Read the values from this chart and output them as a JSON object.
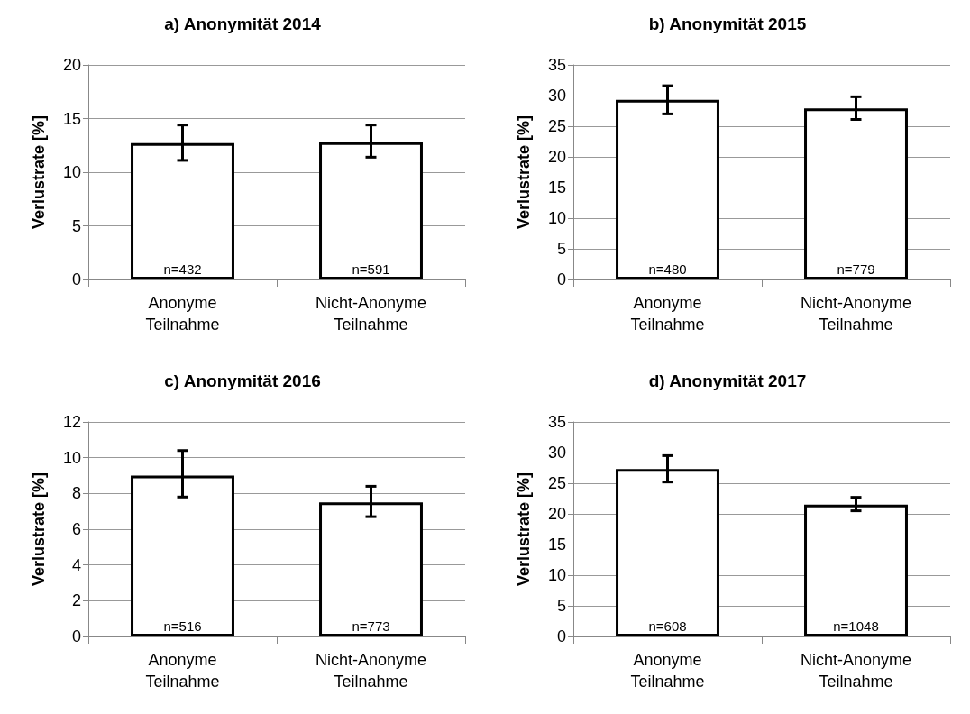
{
  "chart_data": [
    {
      "type": "bar",
      "title": "a) Anonymität 2014",
      "ylabel": "Verlustrate [%]",
      "categories": [
        "Anonyme\nTeilnahme",
        "Nicht-Anonyme\nTeilnahme"
      ],
      "values": [
        12.7,
        12.8
      ],
      "errors": [
        [
          11.1,
          14.4
        ],
        [
          11.4,
          14.4
        ]
      ],
      "color": "#ffffff",
      "ylim": [
        0,
        20
      ],
      "yticks": [
        0,
        5,
        10,
        15,
        20
      ],
      "grid": "y",
      "annotations": [
        {
          "text": "n=432",
          "x": "Anonyme\nTeilnahme",
          "y": 0
        },
        {
          "text": "n=591",
          "x": "Nicht-Anonyme\nTeilnahme",
          "y": 0
        }
      ]
    },
    {
      "type": "bar",
      "title": "b) Anonymität 2015",
      "ylabel": "Verlustrate [%]",
      "categories": [
        "Anonyme\nTeilnahme",
        "Nicht-Anonyme\nTeilnahme"
      ],
      "values": [
        29.3,
        27.9
      ],
      "errors": [
        [
          27.0,
          31.6
        ],
        [
          26.1,
          29.8
        ]
      ],
      "color": "#ffffff",
      "ylim": [
        0,
        35
      ],
      "yticks": [
        0,
        5,
        10,
        15,
        20,
        25,
        30,
        35
      ],
      "grid": "y",
      "annotations": [
        {
          "text": "n=480",
          "x": "Anonyme\nTeilnahme",
          "y": 0
        },
        {
          "text": "n=779",
          "x": "Nicht-Anonyme\nTeilnahme",
          "y": 0
        }
      ]
    },
    {
      "type": "bar",
      "title": "c) Anonymität 2016",
      "ylabel": "Verlustrate [%]",
      "categories": [
        "Anonyme\nTeilnahme",
        "Nicht-Anonyme\nTeilnahme"
      ],
      "values": [
        9.0,
        7.5
      ],
      "errors": [
        [
          7.8,
          10.4
        ],
        [
          6.7,
          8.4
        ]
      ],
      "color": "#ffffff",
      "ylim": [
        0,
        12
      ],
      "yticks": [
        0,
        2,
        4,
        6,
        8,
        10,
        12
      ],
      "grid": "y",
      "annotations": [
        {
          "text": "n=516",
          "x": "Anonyme\nTeilnahme",
          "y": 0
        },
        {
          "text": "n=773",
          "x": "Nicht-Anonyme\nTeilnahme",
          "y": 0
        }
      ]
    },
    {
      "type": "bar",
      "title": "d) Anonymität 2017",
      "ylabel": "Verlustrate [%]",
      "categories": [
        "Anonyme\nTeilnahme",
        "Nicht-Anonyme\nTeilnahme"
      ],
      "values": [
        27.3,
        21.5
      ],
      "errors": [
        [
          25.2,
          29.5
        ],
        [
          20.5,
          22.7
        ]
      ],
      "color": "#ffffff",
      "ylim": [
        0,
        35
      ],
      "yticks": [
        0,
        5,
        10,
        15,
        20,
        25,
        30,
        35
      ],
      "grid": "y",
      "annotations": [
        {
          "text": "n=608",
          "x": "Anonyme\nTeilnahme",
          "y": 0
        },
        {
          "text": "n=1048",
          "x": "Nicht-Anonyme\nTeilnahme",
          "y": 0
        }
      ]
    }
  ]
}
